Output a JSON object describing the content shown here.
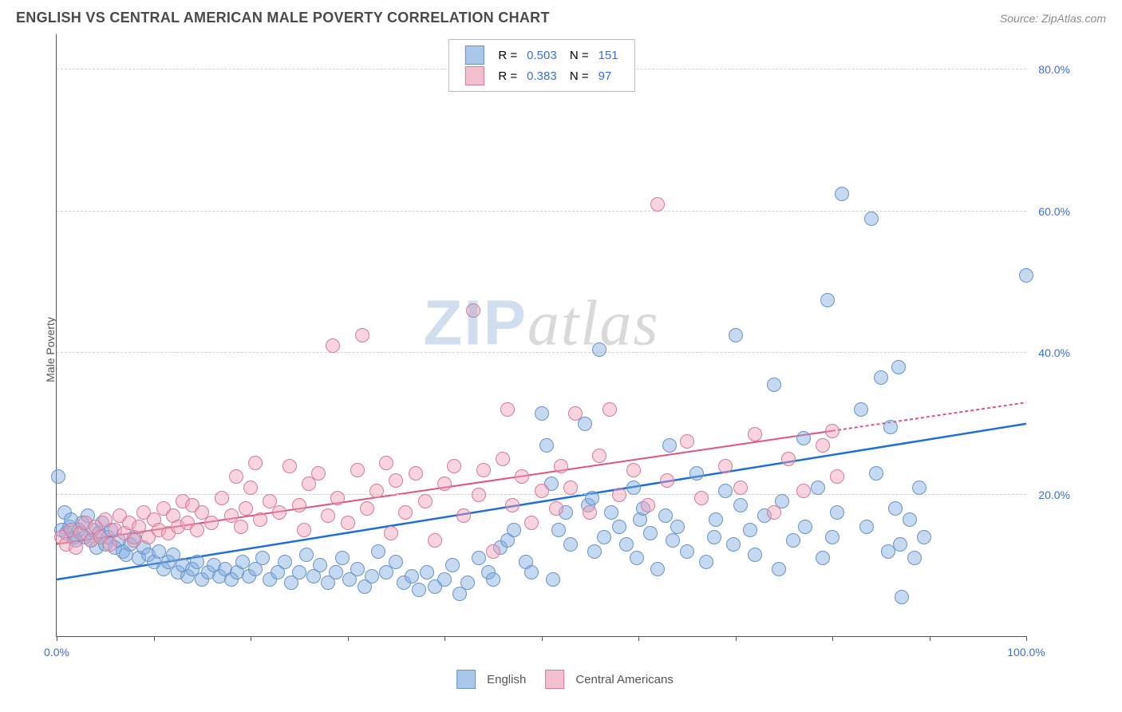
{
  "header": {
    "title": "ENGLISH VS CENTRAL AMERICAN MALE POVERTY CORRELATION CHART",
    "source": "Source: ZipAtlas.com"
  },
  "chart": {
    "type": "scatter",
    "ylabel": "Male Poverty",
    "background_color": "#ffffff",
    "grid_color": "#d0d0d0",
    "axis_color": "#555555",
    "tick_label_color": "#3b6fd6",
    "xlim": [
      0,
      100
    ],
    "ylim": [
      0,
      85
    ],
    "xtick_positions": [
      0,
      10,
      20,
      30,
      40,
      50,
      60,
      70,
      80,
      90,
      100
    ],
    "xtick_labels": {
      "0": "0.0%",
      "100": "100.0%"
    },
    "ytick_positions": [
      20,
      40,
      60,
      80
    ],
    "ytick_labels": {
      "20": "20.0%",
      "40": "40.0%",
      "60": "60.0%",
      "80": "80.0%"
    },
    "marker_radius": 9,
    "marker_border_width": 1.2,
    "watermark": {
      "zip": "ZIP",
      "atlas": "atlas"
    },
    "series": [
      {
        "name": "English",
        "fill_color": "rgba(126,170,223,0.45)",
        "stroke_color": "#6a94c9",
        "swatch_fill": "#aac6e8",
        "swatch_border": "#6a94c9",
        "trend_color": "#1f6fd6",
        "trend_width": 2.5,
        "trend": {
          "x1": 0,
          "y1": 8,
          "x2": 100,
          "y2": 30,
          "dash_after_x": null
        },
        "R": "0.503",
        "N": "151",
        "points": [
          [
            0.2,
            22.5
          ],
          [
            0.5,
            15.0
          ],
          [
            0.8,
            17.5
          ],
          [
            1.0,
            14.5
          ],
          [
            1.3,
            15.5
          ],
          [
            1.5,
            16.5
          ],
          [
            1.8,
            14.0
          ],
          [
            2.0,
            13.5
          ],
          [
            2.3,
            15.0
          ],
          [
            2.6,
            16.0
          ],
          [
            2.9,
            14.0
          ],
          [
            3.2,
            17.0
          ],
          [
            3.5,
            13.5
          ],
          [
            3.8,
            15.0
          ],
          [
            4.1,
            12.5
          ],
          [
            4.4,
            14.5
          ],
          [
            4.7,
            16.0
          ],
          [
            5.0,
            13.0
          ],
          [
            5.3,
            14.0
          ],
          [
            5.6,
            15.0
          ],
          [
            6.0,
            12.5
          ],
          [
            6.4,
            13.5
          ],
          [
            6.8,
            12.0
          ],
          [
            7.2,
            11.5
          ],
          [
            7.6,
            13.0
          ],
          [
            8.0,
            14.0
          ],
          [
            8.5,
            11.0
          ],
          [
            9.0,
            12.5
          ],
          [
            9.5,
            11.5
          ],
          [
            10.0,
            10.5
          ],
          [
            10.5,
            12.0
          ],
          [
            11.0,
            9.5
          ],
          [
            11.5,
            10.5
          ],
          [
            12.0,
            11.5
          ],
          [
            12.5,
            9.0
          ],
          [
            13.0,
            10.0
          ],
          [
            13.5,
            8.5
          ],
          [
            14.0,
            9.5
          ],
          [
            14.5,
            10.5
          ],
          [
            15.0,
            8.0
          ],
          [
            15.6,
            9.0
          ],
          [
            16.2,
            10.0
          ],
          [
            16.8,
            8.5
          ],
          [
            17.4,
            9.5
          ],
          [
            18.0,
            8.0
          ],
          [
            18.6,
            9.0
          ],
          [
            19.2,
            10.5
          ],
          [
            19.8,
            8.5
          ],
          [
            20.5,
            9.5
          ],
          [
            21.2,
            11.0
          ],
          [
            22.0,
            8.0
          ],
          [
            22.8,
            9.0
          ],
          [
            23.5,
            10.5
          ],
          [
            24.2,
            7.5
          ],
          [
            25.0,
            9.0
          ],
          [
            25.8,
            11.5
          ],
          [
            26.5,
            8.5
          ],
          [
            27.2,
            10.0
          ],
          [
            28.0,
            7.5
          ],
          [
            28.8,
            9.0
          ],
          [
            29.5,
            11.0
          ],
          [
            30.2,
            8.0
          ],
          [
            31.0,
            9.5
          ],
          [
            31.8,
            7.0
          ],
          [
            32.5,
            8.5
          ],
          [
            33.2,
            12.0
          ],
          [
            34.0,
            9.0
          ],
          [
            35.0,
            10.5
          ],
          [
            35.8,
            7.5
          ],
          [
            36.6,
            8.5
          ],
          [
            37.4,
            6.5
          ],
          [
            38.2,
            9.0
          ],
          [
            39.0,
            7.0
          ],
          [
            40.0,
            8.0
          ],
          [
            40.8,
            10.0
          ],
          [
            41.6,
            6.0
          ],
          [
            42.4,
            7.5
          ],
          [
            43.5,
            11.0
          ],
          [
            44.5,
            9.0
          ],
          [
            45.0,
            8.0
          ],
          [
            45.8,
            12.5
          ],
          [
            46.5,
            13.5
          ],
          [
            47.2,
            15.0
          ],
          [
            48.4,
            10.5
          ],
          [
            49.0,
            9.0
          ],
          [
            50.0,
            31.5
          ],
          [
            50.5,
            27.0
          ],
          [
            51.0,
            21.5
          ],
          [
            51.2,
            8.0
          ],
          [
            51.8,
            15.0
          ],
          [
            52.5,
            17.5
          ],
          [
            53.0,
            13.0
          ],
          [
            54.5,
            30.0
          ],
          [
            54.8,
            18.5
          ],
          [
            55.2,
            19.5
          ],
          [
            55.5,
            12.0
          ],
          [
            56.0,
            40.5
          ],
          [
            56.5,
            14.0
          ],
          [
            57.2,
            17.5
          ],
          [
            58.0,
            15.5
          ],
          [
            58.8,
            13.0
          ],
          [
            59.5,
            21.0
          ],
          [
            59.8,
            11.0
          ],
          [
            60.2,
            16.5
          ],
          [
            60.5,
            18.0
          ],
          [
            61.2,
            14.5
          ],
          [
            62.0,
            9.5
          ],
          [
            62.8,
            17.0
          ],
          [
            63.2,
            27.0
          ],
          [
            63.5,
            13.5
          ],
          [
            64.0,
            15.5
          ],
          [
            65.0,
            12.0
          ],
          [
            66.0,
            23.0
          ],
          [
            67.0,
            10.5
          ],
          [
            67.8,
            14.0
          ],
          [
            68.0,
            16.5
          ],
          [
            69.0,
            20.5
          ],
          [
            69.8,
            13.0
          ],
          [
            70.0,
            42.5
          ],
          [
            70.5,
            18.5
          ],
          [
            71.5,
            15.0
          ],
          [
            72.0,
            11.5
          ],
          [
            73.0,
            17.0
          ],
          [
            74.0,
            35.5
          ],
          [
            74.5,
            9.5
          ],
          [
            74.8,
            19.0
          ],
          [
            76.0,
            13.5
          ],
          [
            77.0,
            28.0
          ],
          [
            77.2,
            15.5
          ],
          [
            78.5,
            21.0
          ],
          [
            79.0,
            11.0
          ],
          [
            79.5,
            47.5
          ],
          [
            80.0,
            14.0
          ],
          [
            80.5,
            17.5
          ],
          [
            81.0,
            62.5
          ],
          [
            83.0,
            32.0
          ],
          [
            83.5,
            15.5
          ],
          [
            84.0,
            59.0
          ],
          [
            84.5,
            23.0
          ],
          [
            85.0,
            36.5
          ],
          [
            85.8,
            12.0
          ],
          [
            86.0,
            29.5
          ],
          [
            86.5,
            18.0
          ],
          [
            86.8,
            38.0
          ],
          [
            87.0,
            13.0
          ],
          [
            87.2,
            5.5
          ],
          [
            88.0,
            16.5
          ],
          [
            88.5,
            11.0
          ],
          [
            89.0,
            21.0
          ],
          [
            89.5,
            14.0
          ],
          [
            100.0,
            51.0
          ]
        ]
      },
      {
        "name": "Central Americans",
        "fill_color": "rgba(240,160,185,0.45)",
        "stroke_color": "#d77a9a",
        "swatch_fill": "#f3c0d0",
        "swatch_border": "#d77a9a",
        "trend_color": "#e0547c",
        "trend_width": 2,
        "trend": {
          "x1": 0,
          "y1": 13,
          "x2": 100,
          "y2": 33,
          "dash_after_x": 80
        },
        "R": "0.383",
        "N": "97",
        "points": [
          [
            0.5,
            14.0
          ],
          [
            1.0,
            13.0
          ],
          [
            1.5,
            15.0
          ],
          [
            2.0,
            12.5
          ],
          [
            2.5,
            14.5
          ],
          [
            3.0,
            16.0
          ],
          [
            3.5,
            13.5
          ],
          [
            4.0,
            15.5
          ],
          [
            4.5,
            14.0
          ],
          [
            5.0,
            16.5
          ],
          [
            5.5,
            13.0
          ],
          [
            6.0,
            15.0
          ],
          [
            6.5,
            17.0
          ],
          [
            7.0,
            14.5
          ],
          [
            7.5,
            16.0
          ],
          [
            8.0,
            13.5
          ],
          [
            8.5,
            15.5
          ],
          [
            9.0,
            17.5
          ],
          [
            9.5,
            14.0
          ],
          [
            10.0,
            16.5
          ],
          [
            10.5,
            15.0
          ],
          [
            11.0,
            18.0
          ],
          [
            11.5,
            14.5
          ],
          [
            12.0,
            17.0
          ],
          [
            12.5,
            15.5
          ],
          [
            13.0,
            19.0
          ],
          [
            13.5,
            16.0
          ],
          [
            14.0,
            18.5
          ],
          [
            14.5,
            15.0
          ],
          [
            15.0,
            17.5
          ],
          [
            16.0,
            16.0
          ],
          [
            17.0,
            19.5
          ],
          [
            18.0,
            17.0
          ],
          [
            18.5,
            22.5
          ],
          [
            19.0,
            15.5
          ],
          [
            19.5,
            18.0
          ],
          [
            20.0,
            21.0
          ],
          [
            20.5,
            24.5
          ],
          [
            21.0,
            16.5
          ],
          [
            22.0,
            19.0
          ],
          [
            23.0,
            17.5
          ],
          [
            24.0,
            24.0
          ],
          [
            25.0,
            18.5
          ],
          [
            25.5,
            15.0
          ],
          [
            26.0,
            21.5
          ],
          [
            27.0,
            23.0
          ],
          [
            28.0,
            17.0
          ],
          [
            28.5,
            41.0
          ],
          [
            29.0,
            19.5
          ],
          [
            30.0,
            16.0
          ],
          [
            31.0,
            23.5
          ],
          [
            31.5,
            42.5
          ],
          [
            32.0,
            18.0
          ],
          [
            33.0,
            20.5
          ],
          [
            34.0,
            24.5
          ],
          [
            34.5,
            14.5
          ],
          [
            35.0,
            22.0
          ],
          [
            36.0,
            17.5
          ],
          [
            37.0,
            23.0
          ],
          [
            38.0,
            19.0
          ],
          [
            39.0,
            13.5
          ],
          [
            40.0,
            21.5
          ],
          [
            41.0,
            24.0
          ],
          [
            42.0,
            17.0
          ],
          [
            43.0,
            46.0
          ],
          [
            43.5,
            20.0
          ],
          [
            44.0,
            23.5
          ],
          [
            45.0,
            12.0
          ],
          [
            46.0,
            25.0
          ],
          [
            46.5,
            32.0
          ],
          [
            47.0,
            18.5
          ],
          [
            48.0,
            22.5
          ],
          [
            49.0,
            16.0
          ],
          [
            50.0,
            20.5
          ],
          [
            51.5,
            18.0
          ],
          [
            52.0,
            24.0
          ],
          [
            53.0,
            21.0
          ],
          [
            53.5,
            31.5
          ],
          [
            55.0,
            17.5
          ],
          [
            56.0,
            25.5
          ],
          [
            57.0,
            32.0
          ],
          [
            58.0,
            20.0
          ],
          [
            59.5,
            23.5
          ],
          [
            61.0,
            18.5
          ],
          [
            62.0,
            61.0
          ],
          [
            63.0,
            22.0
          ],
          [
            65.0,
            27.5
          ],
          [
            66.5,
            19.5
          ],
          [
            69.0,
            24.0
          ],
          [
            70.5,
            21.0
          ],
          [
            72.0,
            28.5
          ],
          [
            74.0,
            17.5
          ],
          [
            75.5,
            25.0
          ],
          [
            77.0,
            20.5
          ],
          [
            79.0,
            27.0
          ],
          [
            80.0,
            29.0
          ],
          [
            80.5,
            22.5
          ]
        ]
      }
    ]
  },
  "legend_bottom": [
    {
      "label": "English",
      "series_idx": 0
    },
    {
      "label": "Central Americans",
      "series_idx": 1
    }
  ]
}
